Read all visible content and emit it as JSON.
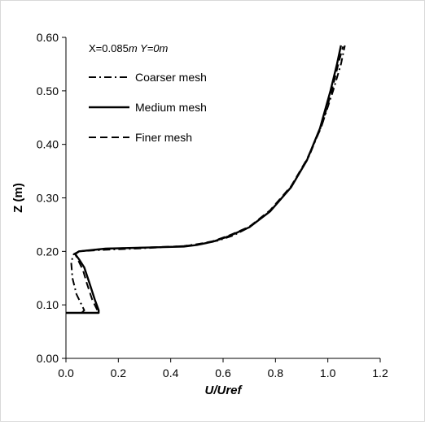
{
  "chart_data": {
    "type": "line",
    "title": "",
    "annotation": {
      "parts": [
        {
          "text": "X=",
          "italic": false
        },
        {
          "text": "0.085",
          "italic": false
        },
        {
          "text": "m",
          "italic": true
        },
        {
          "text": " Y=",
          "italic": true
        },
        {
          "text": "0",
          "italic": true
        },
        {
          "text": "m",
          "italic": true
        }
      ]
    },
    "xlabel": "U/Uref",
    "ylabel": "Z (m)",
    "xlim": [
      0,
      1.2
    ],
    "ylim": [
      0,
      0.6
    ],
    "xticks": [
      "0.0",
      "0.2",
      "0.4",
      "0.6",
      "0.8",
      "1.0",
      "1.2"
    ],
    "yticks": [
      "0.00",
      "0.10",
      "0.20",
      "0.30",
      "0.40",
      "0.50",
      "0.60"
    ],
    "grid": false,
    "legend_position": "top-left",
    "series": [
      {
        "name": "Coarser mesh",
        "style": "dashdot",
        "color": "#000000",
        "points": [
          [
            0.0,
            0.085
          ],
          [
            0.06,
            0.085
          ],
          [
            0.07,
            0.09
          ],
          [
            0.06,
            0.1
          ],
          [
            0.04,
            0.12
          ],
          [
            0.025,
            0.15
          ],
          [
            0.02,
            0.18
          ],
          [
            0.03,
            0.195
          ],
          [
            0.05,
            0.2
          ],
          [
            0.15,
            0.203
          ],
          [
            0.3,
            0.206
          ],
          [
            0.45,
            0.21
          ],
          [
            0.52,
            0.215
          ],
          [
            0.58,
            0.22
          ],
          [
            0.64,
            0.23
          ],
          [
            0.7,
            0.245
          ],
          [
            0.78,
            0.275
          ],
          [
            0.86,
            0.32
          ],
          [
            0.93,
            0.38
          ],
          [
            0.98,
            0.44
          ],
          [
            1.02,
            0.5
          ],
          [
            1.05,
            0.55
          ],
          [
            1.065,
            0.585
          ]
        ]
      },
      {
        "name": "Medium mesh",
        "style": "solid",
        "color": "#000000",
        "points": [
          [
            0.0,
            0.085
          ],
          [
            0.125,
            0.085
          ],
          [
            0.125,
            0.09
          ],
          [
            0.11,
            0.11
          ],
          [
            0.09,
            0.14
          ],
          [
            0.07,
            0.17
          ],
          [
            0.05,
            0.185
          ],
          [
            0.035,
            0.195
          ],
          [
            0.05,
            0.2
          ],
          [
            0.15,
            0.205
          ],
          [
            0.3,
            0.207
          ],
          [
            0.45,
            0.209
          ],
          [
            0.5,
            0.212
          ],
          [
            0.56,
            0.218
          ],
          [
            0.62,
            0.228
          ],
          [
            0.7,
            0.245
          ],
          [
            0.78,
            0.275
          ],
          [
            0.86,
            0.32
          ],
          [
            0.92,
            0.37
          ],
          [
            0.97,
            0.43
          ],
          [
            1.01,
            0.5
          ],
          [
            1.035,
            0.55
          ],
          [
            1.05,
            0.585
          ]
        ]
      },
      {
        "name": "Finer mesh",
        "style": "dashed",
        "color": "#000000",
        "points": [
          [
            0.0,
            0.085
          ],
          [
            0.12,
            0.085
          ],
          [
            0.12,
            0.09
          ],
          [
            0.1,
            0.11
          ],
          [
            0.08,
            0.14
          ],
          [
            0.065,
            0.165
          ],
          [
            0.045,
            0.185
          ],
          [
            0.035,
            0.195
          ],
          [
            0.05,
            0.2
          ],
          [
            0.15,
            0.205
          ],
          [
            0.3,
            0.207
          ],
          [
            0.45,
            0.21
          ],
          [
            0.5,
            0.213
          ],
          [
            0.56,
            0.219
          ],
          [
            0.62,
            0.229
          ],
          [
            0.7,
            0.246
          ],
          [
            0.78,
            0.277
          ],
          [
            0.86,
            0.322
          ],
          [
            0.92,
            0.372
          ],
          [
            0.975,
            0.432
          ],
          [
            1.015,
            0.5
          ],
          [
            1.04,
            0.55
          ],
          [
            1.058,
            0.583
          ]
        ]
      }
    ]
  }
}
